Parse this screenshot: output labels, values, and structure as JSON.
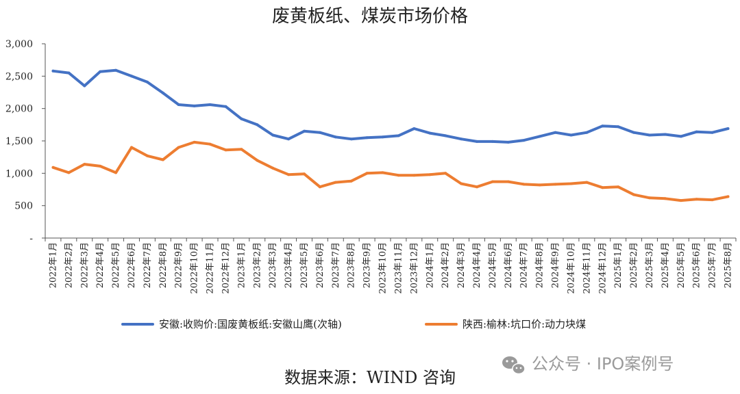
{
  "chart_data": {
    "type": "line",
    "title": "废黄板纸、煤炭市场价格",
    "categories": [
      "2022年1月",
      "2022年2月",
      "2022年3月",
      "2022年4月",
      "2022年5月",
      "2022年6月",
      "2022年7月",
      "2022年8月",
      "2022年9月",
      "2022年10月",
      "2022年11月",
      "2022年12月",
      "2023年1月",
      "2023年2月",
      "2023年3月",
      "2023年4月",
      "2023年5月",
      "2023年6月",
      "2023年7月",
      "2023年8月",
      "2023年9月",
      "2023年10月",
      "2023年11月",
      "2023年12月",
      "2024年1月",
      "2024年2月",
      "2024年3月",
      "2024年4月",
      "2024年5月",
      "2024年6月",
      "2024年7月",
      "2024年8月",
      "2024年9月",
      "2024年10月",
      "2024年11月",
      "2024年12月",
      "2025年1月",
      "2025年2月",
      "2025年3月",
      "2025年4月",
      "2025年5月",
      "2025年6月",
      "2025年7月",
      "2025年8月"
    ],
    "series": [
      {
        "name": "安徽:收购价:国废黄板纸:安徽山鹰(次轴)",
        "color": "#4472C4",
        "values": [
          2580,
          2550,
          2350,
          2570,
          2590,
          2500,
          2410,
          2240,
          2060,
          2040,
          2060,
          2030,
          1840,
          1750,
          1590,
          1530,
          1650,
          1630,
          1560,
          1530,
          1550,
          1560,
          1580,
          1690,
          1620,
          1580,
          1530,
          1490,
          1490,
          1480,
          1510,
          1570,
          1630,
          1590,
          1630,
          1730,
          1720,
          1630,
          1590,
          1600,
          1570,
          1640,
          1630,
          1690
        ]
      },
      {
        "name": "陕西:榆林:坑口价:动力块煤",
        "color": "#ED7D31",
        "values": [
          1090,
          1010,
          1140,
          1110,
          1010,
          1400,
          1270,
          1210,
          1400,
          1480,
          1450,
          1360,
          1370,
          1200,
          1080,
          980,
          990,
          790,
          860,
          880,
          1000,
          1010,
          970,
          970,
          980,
          1000,
          840,
          790,
          870,
          870,
          830,
          820,
          830,
          840,
          860,
          780,
          790,
          670,
          620,
          610,
          580,
          600,
          590,
          640
        ]
      }
    ],
    "yticks": [
      0,
      500,
      1000,
      1500,
      2000,
      2500,
      3000
    ],
    "ytick_labels": [
      "-",
      "500",
      "1,000",
      "1,500",
      "2,000",
      "2,500",
      "3,000"
    ],
    "ylim": [
      0,
      3000
    ]
  },
  "source": "数据来源：WIND 咨询",
  "watermark": {
    "text": "公众号 · IPO案例号",
    "icon": "wechat-icon"
  }
}
